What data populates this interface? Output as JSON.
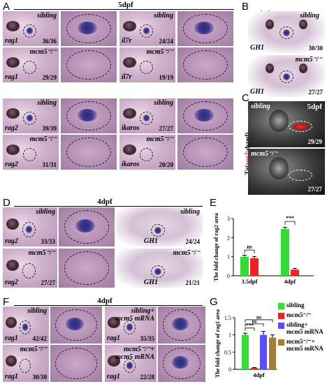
{
  "panels": {
    "A": "A",
    "B": "B",
    "C": "C",
    "D": "D",
    "E": "E",
    "F": "F",
    "G": "G"
  },
  "stages": {
    "A": "5dpf",
    "B": "5dpf",
    "C": "5dpf",
    "D": "4dpf",
    "F": "4dpf"
  },
  "conds": {
    "sibling": "sibling",
    "mut": "mcm5⁻/⁻",
    "sib_mrna": "sibling+\nmcm5 mRNA",
    "mut_mrna": "mcm5⁻/⁻+\nmcm5 mRNA"
  },
  "tg_label": {
    "pre": "Tg(",
    "gene": "rag2",
    "post": ":dsred)"
  },
  "A_images": [
    {
      "gene": "rag1",
      "cond": "sibling",
      "ratio": "36/36"
    },
    {
      "gene": "rag1",
      "cond": "mut",
      "ratio": "29/29"
    },
    {
      "gene": "il7r",
      "cond": "sibling",
      "ratio": "24/24"
    },
    {
      "gene": "il7r",
      "cond": "mut",
      "ratio": "19/19"
    },
    {
      "gene": "rag2",
      "cond": "sibling",
      "ratio": "39/39"
    },
    {
      "gene": "rag2",
      "cond": "mut",
      "ratio": "31/31"
    },
    {
      "gene": "ikaros",
      "cond": "sibling",
      "ratio": "27/27"
    },
    {
      "gene": "ikaros",
      "cond": "mut",
      "ratio": "20/20"
    }
  ],
  "B_images": [
    {
      "gene": "GH1",
      "cond": "sibling",
      "ratio": "30/30"
    },
    {
      "gene": "GH1",
      "cond": "mut",
      "ratio": "27/27"
    }
  ],
  "C_images": [
    {
      "cond": "sibling",
      "ratio": "29/29"
    },
    {
      "cond": "mut",
      "ratio": "27/27"
    }
  ],
  "D_images": [
    {
      "gene": "rag2",
      "cond": "sibling",
      "ratio": "33/33"
    },
    {
      "gene": "rag2",
      "cond": "mut",
      "ratio": "27/27"
    },
    {
      "gene": "GH1",
      "cond": "sibling",
      "ratio": "24/24"
    },
    {
      "gene": "GH1",
      "cond": "mut",
      "ratio": "21/21"
    }
  ],
  "F_images": [
    {
      "gene": "rag1",
      "cond": "sibling",
      "ratio": "42/42"
    },
    {
      "gene": "rag1",
      "cond": "mut",
      "ratio": "30/30"
    },
    {
      "gene": "rag1",
      "cond": "sib_mrna",
      "ratio": "35/35"
    },
    {
      "gene": "rag1",
      "cond": "mut_mrna",
      "ratio": "22/28"
    }
  ],
  "chart_data": [
    {
      "type": "bar",
      "panel": "E",
      "ylabel": "The fold change of rag2 area",
      "categories": [
        "3.5dpf",
        "4dpf"
      ],
      "series": [
        {
          "name": "sibling",
          "color": "#33dd33",
          "values": [
            1.0,
            2.45
          ],
          "errors": [
            0.08,
            0.09
          ]
        },
        {
          "name": "mcm5-/-",
          "color": "#ee2222",
          "values": [
            0.92,
            0.32
          ],
          "errors": [
            0.09,
            0.07
          ]
        }
      ],
      "ylim": [
        0,
        3
      ],
      "yticks": [
        0,
        1,
        2,
        3
      ],
      "annotations": [
        {
          "category": "3.5dpf",
          "text": "ns"
        },
        {
          "category": "4dpf",
          "text": "***"
        }
      ]
    },
    {
      "type": "bar",
      "panel": "G",
      "ylabel": "The fold change of rag1 area",
      "categories": [
        "4dpf"
      ],
      "series": [
        {
          "name": "sibling",
          "color": "#33dd33",
          "values": [
            1.0
          ],
          "errors": [
            0.05
          ]
        },
        {
          "name": "mcm5-/-",
          "color": "#ee2222",
          "values": [
            0.04
          ],
          "errors": [
            0.01
          ]
        },
        {
          "name": "sibling+ mcm5 mRNA",
          "color": "#5a4dff",
          "values": [
            1.0
          ],
          "errors": [
            0.1
          ]
        },
        {
          "name": "mcm5-/-+ mcm5 mRNA",
          "color": "#a67c3a",
          "values": [
            0.92
          ],
          "errors": [
            0.08
          ]
        }
      ],
      "ylim": [
        0,
        1.5
      ],
      "yticks": [
        0,
        0.5,
        1,
        1.5
      ],
      "annotations": [
        {
          "text": "***"
        },
        {
          "text": "ns"
        },
        {
          "text": "ns"
        }
      ]
    }
  ],
  "legend_G": [
    {
      "label": "sibling",
      "color": "#33dd33"
    },
    {
      "label": "mcm5⁻/⁻",
      "color": "#ee2222"
    },
    {
      "label": "sibling+\nmcm5 mRNA",
      "color": "#5a4dff"
    },
    {
      "label": "mcm5⁻/⁻+\nmcm5 mRNA",
      "color": "#a67c3a"
    }
  ]
}
